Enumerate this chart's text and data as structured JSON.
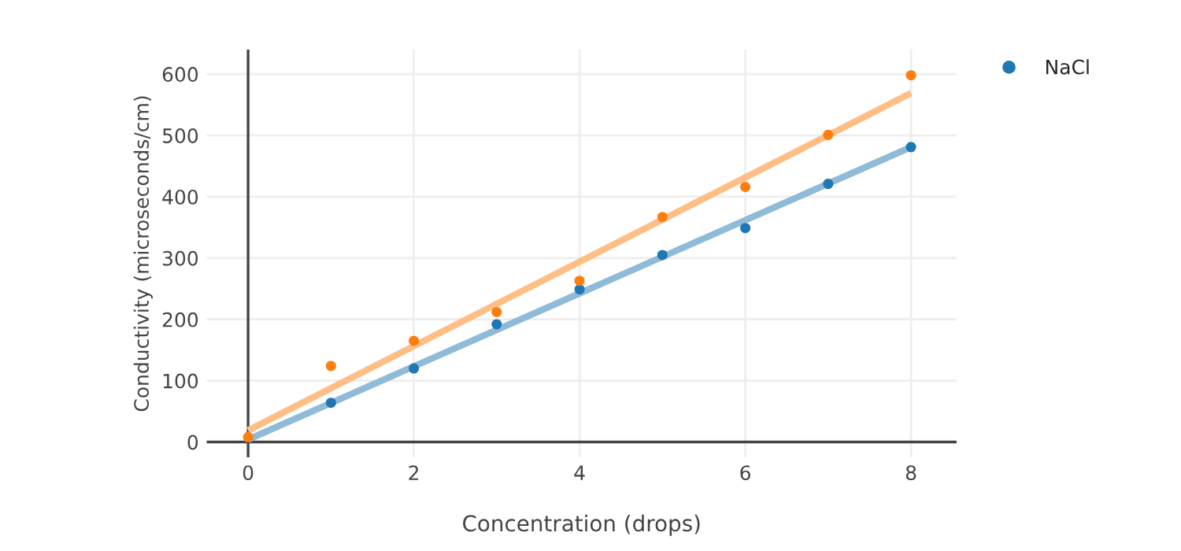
{
  "chart_data": {
    "type": "scatter",
    "xlabel": "Concentration (drops)",
    "ylabel": "Conductivity (microseconds/cm)",
    "xlim": [
      -0.5,
      8.55
    ],
    "ylim": [
      -25,
      640
    ],
    "xticks": [
      0,
      2,
      4,
      6,
      8
    ],
    "yticks": [
      0,
      100,
      200,
      300,
      400,
      500,
      600
    ],
    "grid": true,
    "legend": "top right",
    "series": [
      {
        "name": "NaCl",
        "marker": "circle",
        "color": "#1f77b4",
        "x": [
          1,
          2,
          3,
          4,
          5,
          6,
          7,
          8
        ],
        "values": [
          64,
          120,
          192,
          249,
          305,
          349,
          421,
          481
        ]
      },
      {
        "marker": "circle",
        "color": "#ff7f0e",
        "x": [
          0,
          1,
          2,
          3,
          4,
          5,
          6,
          7,
          8
        ],
        "values": [
          8,
          124,
          165,
          212,
          263,
          367,
          416,
          501,
          598
        ]
      },
      {
        "type": "line",
        "color": "#8fbbd9",
        "x": [
          0,
          8
        ],
        "values": [
          4,
          481
        ]
      },
      {
        "type": "line",
        "color": "#ffbe86",
        "x": [
          0,
          8
        ],
        "values": [
          19,
          569
        ]
      }
    ]
  }
}
